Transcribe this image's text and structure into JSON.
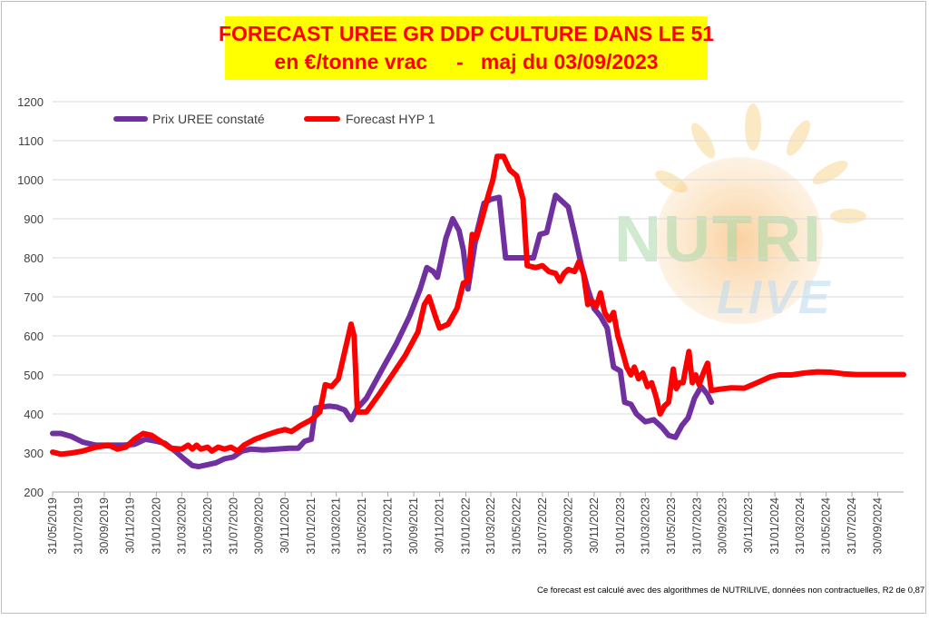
{
  "header": {
    "title_line1": "FORECAST UREE GR DDP CULTURE DANS LE 51",
    "title_line2": "en €/tonne vrac     -   maj du 03/09/2023"
  },
  "footnote": "Ce forecast est calculé avec des algorithmes de NUTRILIVE, données non contractuelles, R2 de 0,87",
  "watermark": {
    "line1": "NUTRI",
    "line2": "LIVE"
  },
  "colors": {
    "series1": "#7030a0",
    "series2": "#ff0000",
    "title_bg": "#ffff00",
    "title_text": "#ff0000",
    "grid": "#d9d9d9"
  },
  "chart_data": {
    "type": "line",
    "title": "FORECAST UREE GR DDP CULTURE DANS LE 51",
    "subtitle": "en €/tonne vrac     -   maj du 03/09/2023",
    "xlabel": "",
    "ylabel": "",
    "ylim": [
      200,
      1200
    ],
    "yticks": [
      200,
      300,
      400,
      500,
      600,
      700,
      800,
      900,
      1000,
      1100,
      1200
    ],
    "xlim": [
      "2019-05-31",
      "2024-11-30"
    ],
    "xtick_labels": [
      "31/05/2019",
      "31/07/2019",
      "30/09/2019",
      "30/11/2019",
      "31/01/2020",
      "31/03/2020",
      "31/05/2020",
      "31/07/2020",
      "30/09/2020",
      "30/11/2020",
      "31/01/2021",
      "31/03/2021",
      "31/05/2021",
      "31/07/2021",
      "30/09/2021",
      "30/11/2021",
      "31/01/2022",
      "31/03/2022",
      "31/05/2022",
      "31/07/2022",
      "30/09/2022",
      "30/11/2022",
      "31/01/2023",
      "31/03/2023",
      "31/05/2023",
      "31/07/2023",
      "30/09/2023",
      "30/11/2023",
      "31/01/2024",
      "31/03/2024",
      "31/05/2024",
      "31/07/2024",
      "30/09/2024"
    ],
    "grid": true,
    "legend_position": "top-left",
    "series": [
      {
        "name": "Prix UREE constaté",
        "color": "#7030a0",
        "points": [
          [
            "2019-05-31",
            350
          ],
          [
            "2019-06-20",
            350
          ],
          [
            "2019-07-15",
            342
          ],
          [
            "2019-08-10",
            328
          ],
          [
            "2019-09-10",
            320
          ],
          [
            "2019-10-15",
            320
          ],
          [
            "2019-11-15",
            320
          ],
          [
            "2019-12-10",
            322
          ],
          [
            "2020-01-05",
            335
          ],
          [
            "2020-01-31",
            330
          ],
          [
            "2020-02-20",
            325
          ],
          [
            "2020-03-15",
            305
          ],
          [
            "2020-04-05",
            285
          ],
          [
            "2020-04-25",
            268
          ],
          [
            "2020-05-10",
            265
          ],
          [
            "2020-05-31",
            270
          ],
          [
            "2020-06-20",
            275
          ],
          [
            "2020-07-10",
            285
          ],
          [
            "2020-07-31",
            290
          ],
          [
            "2020-08-20",
            305
          ],
          [
            "2020-09-10",
            310
          ],
          [
            "2020-10-10",
            308
          ],
          [
            "2020-11-10",
            310
          ],
          [
            "2020-12-10",
            312
          ],
          [
            "2020-12-31",
            312
          ],
          [
            "2021-01-15",
            330
          ],
          [
            "2021-01-31",
            335
          ],
          [
            "2021-02-10",
            415
          ],
          [
            "2021-02-25",
            418
          ],
          [
            "2021-03-15",
            420
          ],
          [
            "2021-04-01",
            418
          ],
          [
            "2021-04-20",
            410
          ],
          [
            "2021-05-05",
            385
          ],
          [
            "2021-05-20",
            415
          ],
          [
            "2021-06-10",
            440
          ],
          [
            "2021-06-25",
            470
          ],
          [
            "2021-07-20",
            520
          ],
          [
            "2021-08-20",
            580
          ],
          [
            "2021-09-20",
            650
          ],
          [
            "2021-10-15",
            720
          ],
          [
            "2021-10-31",
            775
          ],
          [
            "2021-11-15",
            765
          ],
          [
            "2021-11-25",
            750
          ],
          [
            "2021-12-15",
            850
          ],
          [
            "2021-12-31",
            900
          ],
          [
            "2022-01-15",
            870
          ],
          [
            "2022-01-25",
            820
          ],
          [
            "2022-02-05",
            720
          ],
          [
            "2022-02-25",
            860
          ],
          [
            "2022-03-15",
            940
          ],
          [
            "2022-03-31",
            950
          ],
          [
            "2022-04-20",
            955
          ],
          [
            "2022-05-05",
            800
          ],
          [
            "2022-05-31",
            800
          ],
          [
            "2022-06-20",
            800
          ],
          [
            "2022-07-10",
            800
          ],
          [
            "2022-07-25",
            860
          ],
          [
            "2022-08-10",
            865
          ],
          [
            "2022-08-31",
            960
          ],
          [
            "2022-09-15",
            945
          ],
          [
            "2022-09-30",
            930
          ],
          [
            "2022-10-15",
            860
          ],
          [
            "2022-10-31",
            780
          ],
          [
            "2022-11-15",
            720
          ],
          [
            "2022-11-30",
            670
          ],
          [
            "2022-12-15",
            650
          ],
          [
            "2022-12-31",
            620
          ],
          [
            "2023-01-15",
            520
          ],
          [
            "2023-01-31",
            510
          ],
          [
            "2023-02-10",
            430
          ],
          [
            "2023-02-25",
            425
          ],
          [
            "2023-03-10",
            400
          ],
          [
            "2023-03-31",
            380
          ],
          [
            "2023-04-20",
            385
          ],
          [
            "2023-05-10",
            365
          ],
          [
            "2023-05-25",
            345
          ],
          [
            "2023-06-10",
            340
          ],
          [
            "2023-06-25",
            370
          ],
          [
            "2023-07-10",
            390
          ],
          [
            "2023-07-25",
            440
          ],
          [
            "2023-08-10",
            470
          ],
          [
            "2023-08-25",
            450
          ],
          [
            "2023-09-03",
            430
          ]
        ]
      },
      {
        "name": "Forecast HYP 1",
        "color": "#ff0000",
        "points": [
          [
            "2019-05-31",
            302
          ],
          [
            "2019-06-20",
            297
          ],
          [
            "2019-07-15",
            300
          ],
          [
            "2019-08-10",
            305
          ],
          [
            "2019-09-10",
            315
          ],
          [
            "2019-10-10",
            320
          ],
          [
            "2019-10-31",
            310
          ],
          [
            "2019-11-20",
            315
          ],
          [
            "2019-12-10",
            335
          ],
          [
            "2019-12-31",
            350
          ],
          [
            "2020-01-20",
            345
          ],
          [
            "2020-02-10",
            330
          ],
          [
            "2020-03-05",
            312
          ],
          [
            "2020-03-31",
            310
          ],
          [
            "2020-04-15",
            320
          ],
          [
            "2020-04-25",
            310
          ],
          [
            "2020-05-05",
            320
          ],
          [
            "2020-05-15",
            310
          ],
          [
            "2020-05-31",
            315
          ],
          [
            "2020-06-10",
            305
          ],
          [
            "2020-06-25",
            315
          ],
          [
            "2020-07-10",
            310
          ],
          [
            "2020-07-25",
            315
          ],
          [
            "2020-08-10",
            305
          ],
          [
            "2020-08-25",
            320
          ],
          [
            "2020-09-20",
            335
          ],
          [
            "2020-10-15",
            345
          ],
          [
            "2020-11-10",
            355
          ],
          [
            "2020-11-30",
            360
          ],
          [
            "2020-12-15",
            355
          ],
          [
            "2021-01-05",
            370
          ],
          [
            "2021-01-31",
            385
          ],
          [
            "2021-02-20",
            405
          ],
          [
            "2021-03-05",
            475
          ],
          [
            "2021-03-20",
            470
          ],
          [
            "2021-04-05",
            490
          ],
          [
            "2021-04-20",
            560
          ],
          [
            "2021-05-05",
            630
          ],
          [
            "2021-05-12",
            600
          ],
          [
            "2021-05-20",
            405
          ],
          [
            "2021-06-10",
            405
          ],
          [
            "2021-07-10",
            450
          ],
          [
            "2021-08-10",
            500
          ],
          [
            "2021-09-10",
            550
          ],
          [
            "2021-10-10",
            610
          ],
          [
            "2021-10-25",
            680
          ],
          [
            "2021-11-05",
            700
          ],
          [
            "2021-11-20",
            650
          ],
          [
            "2021-11-30",
            620
          ],
          [
            "2021-12-20",
            630
          ],
          [
            "2022-01-10",
            670
          ],
          [
            "2022-01-25",
            735
          ],
          [
            "2022-02-05",
            740
          ],
          [
            "2022-02-15",
            860
          ],
          [
            "2022-02-25",
            850
          ],
          [
            "2022-03-10",
            900
          ],
          [
            "2022-03-25",
            960
          ],
          [
            "2022-04-05",
            1000
          ],
          [
            "2022-04-15",
            1060
          ],
          [
            "2022-04-30",
            1060
          ],
          [
            "2022-05-15",
            1025
          ],
          [
            "2022-05-31",
            1010
          ],
          [
            "2022-06-15",
            950
          ],
          [
            "2022-06-25",
            780
          ],
          [
            "2022-07-15",
            775
          ],
          [
            "2022-07-31",
            780
          ],
          [
            "2022-08-15",
            765
          ],
          [
            "2022-08-31",
            760
          ],
          [
            "2022-09-10",
            740
          ],
          [
            "2022-09-20",
            760
          ],
          [
            "2022-09-30",
            770
          ],
          [
            "2022-10-15",
            765
          ],
          [
            "2022-10-25",
            790
          ],
          [
            "2022-11-05",
            760
          ],
          [
            "2022-11-15",
            680
          ],
          [
            "2022-11-25",
            690
          ],
          [
            "2022-12-05",
            675
          ],
          [
            "2022-12-15",
            710
          ],
          [
            "2022-12-25",
            660
          ],
          [
            "2023-01-05",
            640
          ],
          [
            "2023-01-15",
            660
          ],
          [
            "2023-01-25",
            600
          ],
          [
            "2023-02-05",
            560
          ],
          [
            "2023-02-15",
            520
          ],
          [
            "2023-02-25",
            500
          ],
          [
            "2023-03-05",
            520
          ],
          [
            "2023-03-15",
            490
          ],
          [
            "2023-03-25",
            505
          ],
          [
            "2023-04-05",
            470
          ],
          [
            "2023-04-15",
            480
          ],
          [
            "2023-04-25",
            445
          ],
          [
            "2023-05-05",
            400
          ],
          [
            "2023-05-15",
            420
          ],
          [
            "2023-05-25",
            430
          ],
          [
            "2023-06-05",
            515
          ],
          [
            "2023-06-12",
            465
          ],
          [
            "2023-06-20",
            480
          ],
          [
            "2023-06-28",
            480
          ],
          [
            "2023-07-05",
            520
          ],
          [
            "2023-07-12",
            560
          ],
          [
            "2023-07-20",
            480
          ],
          [
            "2023-07-28",
            500
          ],
          [
            "2023-08-05",
            475
          ],
          [
            "2023-08-15",
            505
          ],
          [
            "2023-08-25",
            530
          ],
          [
            "2023-09-03",
            460
          ],
          [
            "2023-09-20",
            463
          ],
          [
            "2023-10-20",
            467
          ],
          [
            "2023-11-20",
            466
          ],
          [
            "2023-12-20",
            480
          ],
          [
            "2024-01-20",
            495
          ],
          [
            "2024-02-10",
            500
          ],
          [
            "2024-03-10",
            500
          ],
          [
            "2024-04-10",
            505
          ],
          [
            "2024-05-10",
            508
          ],
          [
            "2024-06-10",
            507
          ],
          [
            "2024-07-10",
            503
          ],
          [
            "2024-08-10",
            501
          ],
          [
            "2024-09-10",
            501
          ],
          [
            "2024-10-10",
            501
          ],
          [
            "2024-11-30",
            501
          ]
        ]
      }
    ]
  }
}
